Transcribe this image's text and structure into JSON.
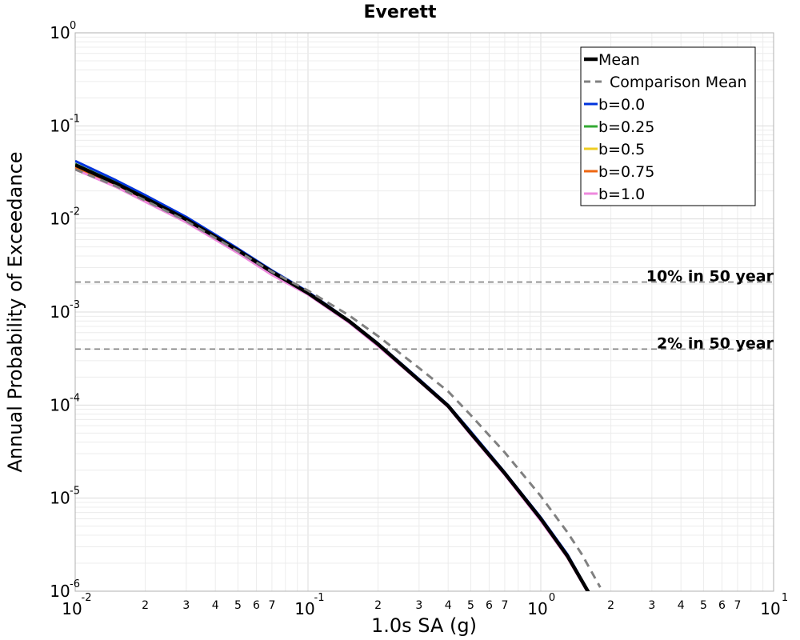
{
  "chart_data": {
    "type": "line",
    "title": "Everett",
    "xlabel": "1.0s SA (g)",
    "ylabel": "Annual Probability of Exceedance",
    "x_scale": "log",
    "y_scale": "log",
    "xlim": [
      0.01,
      10
    ],
    "ylim": [
      1e-06,
      1
    ],
    "grid": true,
    "legend_position": "top-right",
    "x_major_ticks": [
      {
        "value": 0.01,
        "base": "10",
        "exp": "-2"
      },
      {
        "value": 0.1,
        "base": "10",
        "exp": "-1"
      },
      {
        "value": 1,
        "base": "10",
        "exp": "0"
      },
      {
        "value": 10,
        "base": "10",
        "exp": "1"
      }
    ],
    "x_minor_tick_labels": [
      "2",
      "3",
      "4",
      "5",
      "6",
      "7"
    ],
    "y_major_ticks": [
      {
        "value": 1,
        "base": "10",
        "exp": "0"
      },
      {
        "value": 0.1,
        "base": "10",
        "exp": "-1"
      },
      {
        "value": 0.01,
        "base": "10",
        "exp": "-2"
      },
      {
        "value": 0.001,
        "base": "10",
        "exp": "-3"
      },
      {
        "value": 0.0001,
        "base": "10",
        "exp": "-4"
      },
      {
        "value": 1e-05,
        "base": "10",
        "exp": "-5"
      },
      {
        "value": 1e-06,
        "base": "10",
        "exp": "-6"
      }
    ],
    "reference_lines": [
      {
        "label": "10% in 50 year",
        "y": 0.0021,
        "color": "#808080"
      },
      {
        "label": "2% in 50 year",
        "y": 0.0004,
        "color": "#808080"
      }
    ],
    "series": [
      {
        "name": "b=0.0",
        "color": "#0033dd",
        "width": 3,
        "dash": "",
        "x": [
          0.01,
          0.015,
          0.02,
          0.03,
          0.05,
          0.07,
          0.1,
          0.15,
          0.2,
          0.3,
          0.4,
          0.5,
          0.7,
          1.0,
          1.3,
          1.6
        ],
        "y": [
          0.042,
          0.026,
          0.018,
          0.0105,
          0.0048,
          0.0028,
          0.00165,
          0.00081,
          0.00046,
          0.00019,
          0.0001,
          5.2e-05,
          1.9e-05,
          6.2e-06,
          2.5e-06,
          1e-06
        ]
      },
      {
        "name": "b=0.25",
        "color": "#33aa33",
        "width": 3,
        "dash": "",
        "x": [
          0.01,
          0.015,
          0.02,
          0.03,
          0.05,
          0.07,
          0.1,
          0.15,
          0.2,
          0.3,
          0.4,
          0.5,
          0.7,
          1.0,
          1.3,
          1.6
        ],
        "y": [
          0.039,
          0.0245,
          0.017,
          0.01,
          0.0046,
          0.0027,
          0.0016,
          0.0008,
          0.00045,
          0.000185,
          9.8e-05,
          5.1e-05,
          1.85e-05,
          6e-06,
          2.4e-06,
          9.8e-07
        ]
      },
      {
        "name": "b=0.5",
        "color": "#eecc22",
        "width": 3,
        "dash": "",
        "x": [
          0.01,
          0.015,
          0.02,
          0.03,
          0.05,
          0.07,
          0.1,
          0.15,
          0.2,
          0.3,
          0.4,
          0.5,
          0.7,
          1.0,
          1.3,
          1.6
        ],
        "y": [
          0.037,
          0.0235,
          0.0163,
          0.0097,
          0.0045,
          0.0026,
          0.00158,
          0.00079,
          0.000445,
          0.000183,
          9.7e-05,
          5e-05,
          1.83e-05,
          5.9e-06,
          2.4e-06,
          9.7e-07
        ]
      },
      {
        "name": "b=0.75",
        "color": "#ee6611",
        "width": 3,
        "dash": "",
        "x": [
          0.01,
          0.015,
          0.02,
          0.03,
          0.05,
          0.07,
          0.1,
          0.15,
          0.2,
          0.3,
          0.4,
          0.5,
          0.7,
          1.0,
          1.3,
          1.6
        ],
        "y": [
          0.0355,
          0.0228,
          0.0158,
          0.0095,
          0.0044,
          0.0026,
          0.00156,
          0.00078,
          0.00044,
          0.000182,
          9.6e-05,
          4.9e-05,
          1.8e-05,
          5.8e-06,
          2.3e-06,
          9.6e-07
        ]
      },
      {
        "name": "b=1.0",
        "color": "#ee88dd",
        "width": 3,
        "dash": "",
        "x": [
          0.01,
          0.015,
          0.02,
          0.03,
          0.05,
          0.07,
          0.1,
          0.15,
          0.2,
          0.3,
          0.4,
          0.5,
          0.7,
          1.0,
          1.3,
          1.6
        ],
        "y": [
          0.034,
          0.022,
          0.0153,
          0.0092,
          0.0043,
          0.0025,
          0.00154,
          0.00077,
          0.00043,
          0.00018,
          9.5e-05,
          4.8e-05,
          1.78e-05,
          5.7e-06,
          2.3e-06,
          9.5e-07
        ]
      },
      {
        "name": "Mean",
        "color": "#000000",
        "width": 4.5,
        "dash": "",
        "x": [
          0.01,
          0.015,
          0.02,
          0.03,
          0.05,
          0.07,
          0.1,
          0.15,
          0.2,
          0.3,
          0.4,
          0.5,
          0.7,
          1.0,
          1.3,
          1.6
        ],
        "y": [
          0.038,
          0.024,
          0.0167,
          0.0099,
          0.0046,
          0.0027,
          0.0016,
          0.0008,
          0.00045,
          0.000185,
          9.8e-05,
          5e-05,
          1.85e-05,
          6e-06,
          2.4e-06,
          9.8e-07
        ]
      },
      {
        "name": "Comparison Mean",
        "color": "#808080",
        "width": 3,
        "dash": "10,7",
        "x": [
          0.01,
          0.015,
          0.02,
          0.03,
          0.05,
          0.07,
          0.1,
          0.15,
          0.2,
          0.3,
          0.4,
          0.5,
          0.7,
          1.0,
          1.3,
          1.5,
          1.8
        ],
        "y": [
          0.034,
          0.0225,
          0.0158,
          0.0095,
          0.0045,
          0.0027,
          0.0017,
          0.00092,
          0.00055,
          0.00025,
          0.00014,
          7.8e-05,
          3.1e-05,
          1.05e-05,
          4.3e-06,
          2.5e-06,
          1.1e-06
        ]
      }
    ],
    "legend": [
      {
        "name": "Mean",
        "color": "#000000",
        "width": 4.5,
        "dash": ""
      },
      {
        "name": "Comparison Mean",
        "color": "#808080",
        "width": 3,
        "dash": "8,6"
      },
      {
        "name": "b=0.0",
        "color": "#0033dd",
        "width": 3,
        "dash": ""
      },
      {
        "name": "b=0.25",
        "color": "#33aa33",
        "width": 3,
        "dash": ""
      },
      {
        "name": "b=0.5",
        "color": "#eecc22",
        "width": 3,
        "dash": ""
      },
      {
        "name": "b=0.75",
        "color": "#ee6611",
        "width": 3,
        "dash": ""
      },
      {
        "name": "b=1.0",
        "color": "#ee88dd",
        "width": 3,
        "dash": ""
      }
    ]
  }
}
